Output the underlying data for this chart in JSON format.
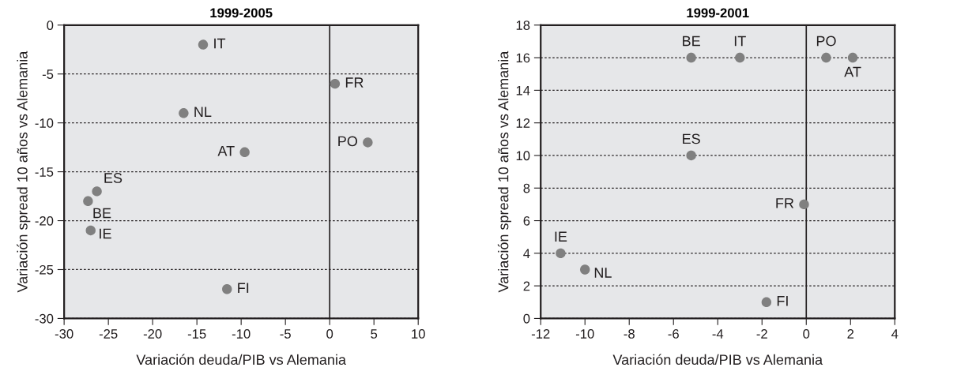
{
  "chart_data": [
    {
      "type": "scatter",
      "title": "1999-2005",
      "xlabel": "Variación deuda/PIB vs Alemania",
      "ylabel": "Variación spread 10 años vs Alemania",
      "x": [
        -14.3,
        0.6,
        -16.5,
        -9.6,
        4.3,
        -26.3,
        -27.3,
        -27.0,
        -11.6
      ],
      "series": [
        {
          "color": "#808080",
          "values": [
            -2,
            -6,
            -9,
            -13,
            -12,
            -17,
            -18,
            -21,
            -27
          ]
        }
      ],
      "annotations": [
        {
          "text": "IT",
          "x": -14.3,
          "y": -2
        },
        {
          "text": "FR",
          "x": 0.6,
          "y": -6
        },
        {
          "text": "NL",
          "x": -16.5,
          "y": -9
        },
        {
          "text": "AT",
          "x": -9.6,
          "y": -13
        },
        {
          "text": "PO",
          "x": 4.3,
          "y": -12
        },
        {
          "text": "ES",
          "x": -26.3,
          "y": -17
        },
        {
          "text": "BE",
          "x": -27.3,
          "y": -18
        },
        {
          "text": "IE",
          "x": -27.0,
          "y": -21
        },
        {
          "text": "FI",
          "x": -11.6,
          "y": -27
        }
      ],
      "xlim": [
        -30,
        10
      ],
      "xticks": [
        -30,
        -25,
        -20,
        -15,
        -10,
        -5,
        0,
        5,
        10
      ],
      "ylim": [
        -30,
        0
      ],
      "yticks": [
        -30,
        -25,
        -20,
        -15,
        -10,
        -5,
        0
      ],
      "ref_lines": [
        {
          "axis": "x",
          "value": 0,
          "color": "#231f20"
        }
      ],
      "grid": "y",
      "marker": "circle"
    },
    {
      "type": "scatter",
      "title": "1999-2001",
      "xlabel": "Variación deuda/PIB vs Alemania",
      "ylabel": "Variación spread 10 años vs Alemania",
      "x": [
        -5.2,
        -3.0,
        0.9,
        2.1,
        -5.2,
        -0.1,
        -11.1,
        -10.0,
        -1.8
      ],
      "series": [
        {
          "color": "#808080",
          "values": [
            16,
            16,
            16,
            16,
            10,
            7,
            4,
            3,
            1
          ]
        }
      ],
      "annotations": [
        {
          "text": "BE",
          "x": -5.2,
          "y": 16
        },
        {
          "text": "IT",
          "x": -3.0,
          "y": 16
        },
        {
          "text": "PO",
          "x": 0.9,
          "y": 16
        },
        {
          "text": "AT",
          "x": 2.1,
          "y": 16
        },
        {
          "text": "ES",
          "x": -5.2,
          "y": 10
        },
        {
          "text": "FR",
          "x": -0.1,
          "y": 7
        },
        {
          "text": "IE",
          "x": -11.1,
          "y": 4
        },
        {
          "text": "NL",
          "x": -10.0,
          "y": 3
        },
        {
          "text": "FI",
          "x": -1.8,
          "y": 1
        }
      ],
      "xlim": [
        -12,
        4
      ],
      "xticks": [
        -12,
        -10,
        -8,
        -6,
        -4,
        -2,
        0,
        2,
        4
      ],
      "ylim": [
        0,
        18
      ],
      "yticks": [
        0,
        2,
        4,
        6,
        8,
        10,
        12,
        14,
        16,
        18
      ],
      "ref_lines": [
        {
          "axis": "x",
          "value": 0,
          "color": "#231f20"
        }
      ],
      "grid": "y",
      "marker": "circle"
    }
  ]
}
